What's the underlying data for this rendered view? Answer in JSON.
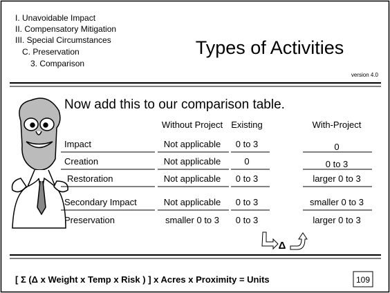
{
  "header": {
    "outline": [
      "I. Unavoidable Impact",
      "II. Compensatory Mitigation",
      "III. Special Circumstances",
      "C.  Preservation",
      "3.  Comparison"
    ],
    "title": "Types of Activities",
    "version": "version 4.0"
  },
  "subtitle": "Now add this to our comparison table.",
  "table": {
    "columns": [
      "Without Project",
      "Existing",
      "With-Project"
    ],
    "rows": [
      [
        "Impact",
        "Not applicable",
        "0 to 3",
        "0"
      ],
      [
        "Creation",
        "Not applicable",
        "0",
        "0 to 3"
      ],
      [
        "Restoration",
        "Not applicable",
        "0 to 3",
        "larger 0 to 3"
      ],
      [
        "Secondary Impact",
        "Not applicable",
        "0 to 3",
        "smaller 0 to 3"
      ],
      [
        "Preservation",
        "smaller 0 to 3",
        "0 to 3",
        "larger 0 to 3"
      ]
    ]
  },
  "delta": "Δ",
  "footer": {
    "formula": "[ Σ (Δ x Weight x Temp x Risk ) ]  x Acres x Proximity = Units",
    "page": "109"
  }
}
